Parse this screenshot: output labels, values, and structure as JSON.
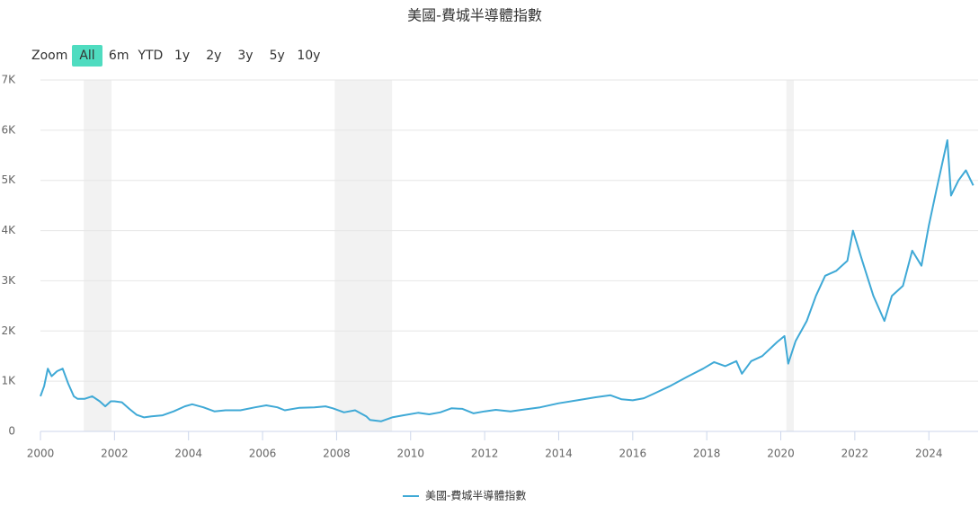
{
  "chart_data": {
    "type": "line",
    "title": "美國-費城半導體指數",
    "range_selector": {
      "label": "Zoom",
      "buttons": [
        "All",
        "6m",
        "YTD",
        "1y",
        "2y",
        "3y",
        "5y",
        "10y"
      ],
      "selected": 0,
      "selected_color": "#4fdcc0"
    },
    "x": [
      2000.0,
      2000.1,
      2000.2,
      2000.3,
      2000.45,
      2000.6,
      2000.75,
      2000.9,
      2001.0,
      2001.2,
      2001.4,
      2001.6,
      2001.75,
      2001.9,
      2002.0,
      2002.2,
      2002.4,
      2002.6,
      2002.8,
      2003.0,
      2003.3,
      2003.6,
      2003.9,
      2004.1,
      2004.4,
      2004.7,
      2005.0,
      2005.4,
      2005.8,
      2006.1,
      2006.4,
      2006.6,
      2007.0,
      2007.4,
      2007.7,
      2007.9,
      2008.2,
      2008.5,
      2008.8,
      2008.9,
      2009.2,
      2009.5,
      2009.8,
      2010.2,
      2010.5,
      2010.8,
      2011.1,
      2011.4,
      2011.7,
      2012.0,
      2012.3,
      2012.7,
      2013.0,
      2013.5,
      2014.0,
      2014.5,
      2015.0,
      2015.4,
      2015.7,
      2016.0,
      2016.3,
      2016.6,
      2017.0,
      2017.5,
      2017.9,
      2018.2,
      2018.5,
      2018.8,
      2018.95,
      2019.2,
      2019.5,
      2019.9,
      2020.1,
      2020.2,
      2020.4,
      2020.7,
      2020.95,
      2021.2,
      2021.5,
      2021.8,
      2021.95,
      2022.2,
      2022.5,
      2022.8,
      2023.0,
      2023.3,
      2023.55,
      2023.8,
      2024.0,
      2024.2,
      2024.5,
      2024.6,
      2024.8,
      2025.0,
      2025.2
    ],
    "series": [
      {
        "name": "美國-費城半導體指數",
        "color": "#3fa9d6",
        "values": [
          700,
          900,
          1250,
          1100,
          1200,
          1250,
          950,
          700,
          650,
          650,
          700,
          600,
          500,
          600,
          600,
          580,
          450,
          330,
          280,
          300,
          320,
          400,
          500,
          540,
          480,
          400,
          420,
          420,
          480,
          520,
          480,
          420,
          470,
          480,
          500,
          460,
          380,
          420,
          300,
          230,
          200,
          280,
          320,
          370,
          340,
          380,
          460,
          450,
          360,
          400,
          430,
          400,
          430,
          480,
          560,
          620,
          680,
          720,
          640,
          620,
          660,
          760,
          900,
          1100,
          1250,
          1380,
          1300,
          1400,
          1150,
          1400,
          1500,
          1780,
          1900,
          1350,
          1800,
          2200,
          2700,
          3100,
          3200,
          3400,
          4000,
          3400,
          2700,
          2200,
          2700,
          2900,
          3600,
          3300,
          4100,
          4800,
          5800,
          4700,
          5000,
          5200,
          4900
        ]
      }
    ],
    "plot_bands": [
      [
        2001.17,
        2001.92
      ],
      [
        2007.95,
        2009.5
      ],
      [
        2020.15,
        2020.35
      ]
    ],
    "plot_band_color": "#f2f2f2",
    "xlim": [
      2000,
      2025.33
    ],
    "xticks": [
      2000,
      2002,
      2004,
      2006,
      2008,
      2010,
      2012,
      2014,
      2016,
      2018,
      2020,
      2022,
      2024
    ],
    "ylim": [
      0,
      7000
    ],
    "yticks": [
      0,
      {
        "value": 1000,
        "label": "1K"
      },
      {
        "value": 2000,
        "label": "2K"
      },
      {
        "value": 3000,
        "label": "3K"
      },
      {
        "value": 4000,
        "label": "4K"
      },
      {
        "value": 5000,
        "label": "5K"
      },
      {
        "value": 6000,
        "label": "6K"
      },
      {
        "value": 7000,
        "label": "7K"
      }
    ],
    "grid": true
  }
}
